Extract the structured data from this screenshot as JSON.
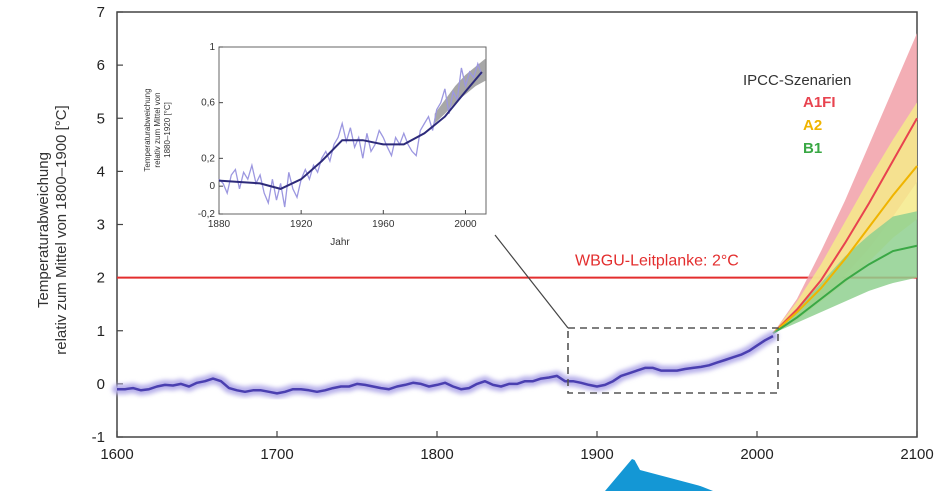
{
  "colors": {
    "history": "#4a3fb0",
    "history_halo": "#b7b0ea",
    "guardrail": "#e32e2e",
    "a1fi": "#e8434f",
    "a1fi_band": "#f1a0a8",
    "a2": "#f0b400",
    "a2_band": "#f5ea8a",
    "b1": "#3aa845",
    "b1_band": "#8fd08f",
    "shape": "#1497d5"
  },
  "chart_data": [
    {
      "type": "line",
      "title": "",
      "ylabel_lines": [
        "Temperaturabweichung",
        "relativ zum Mittel von 1800–1900 [°C]"
      ],
      "xlabel": "",
      "xlim": [
        1600,
        2100
      ],
      "ylim": [
        -1,
        7
      ],
      "xticks": [
        "1600",
        "1700",
        "1800",
        "1900",
        "2000",
        "2100"
      ],
      "yticks": [
        "-1",
        "0",
        "1",
        "2",
        "3",
        "4",
        "5",
        "6",
        "7"
      ],
      "history": {
        "x": [
          1600,
          1605,
          1610,
          1615,
          1620,
          1625,
          1630,
          1635,
          1640,
          1645,
          1650,
          1655,
          1660,
          1665,
          1670,
          1675,
          1680,
          1685,
          1690,
          1695,
          1700,
          1705,
          1710,
          1715,
          1720,
          1725,
          1730,
          1735,
          1740,
          1745,
          1750,
          1755,
          1760,
          1765,
          1770,
          1775,
          1780,
          1785,
          1790,
          1795,
          1800,
          1805,
          1810,
          1815,
          1820,
          1825,
          1830,
          1835,
          1840,
          1845,
          1850,
          1855,
          1860,
          1865,
          1870,
          1875,
          1880,
          1885,
          1890,
          1895,
          1900,
          1905,
          1910,
          1915,
          1920,
          1925,
          1930,
          1935,
          1940,
          1945,
          1950,
          1955,
          1960,
          1965,
          1970,
          1975,
          1980,
          1985,
          1990,
          1995,
          2000,
          2005,
          2010
        ],
        "y": [
          -0.1,
          -0.1,
          -0.08,
          -0.12,
          -0.1,
          -0.05,
          -0.02,
          -0.03,
          0.0,
          -0.05,
          0.02,
          0.05,
          0.1,
          0.05,
          -0.08,
          -0.12,
          -0.15,
          -0.12,
          -0.12,
          -0.15,
          -0.18,
          -0.15,
          -0.1,
          -0.1,
          -0.12,
          -0.15,
          -0.12,
          -0.08,
          -0.05,
          -0.05,
          0.0,
          -0.02,
          -0.05,
          -0.08,
          -0.1,
          -0.05,
          -0.02,
          0.02,
          0.0,
          -0.05,
          -0.02,
          0.02,
          -0.05,
          -0.1,
          -0.08,
          0.0,
          0.05,
          -0.02,
          -0.05,
          0.0,
          0.0,
          0.05,
          0.05,
          0.1,
          0.12,
          0.15,
          0.05,
          0.05,
          0.02,
          -0.02,
          -0.05,
          -0.02,
          0.05,
          0.15,
          0.2,
          0.25,
          0.3,
          0.3,
          0.25,
          0.25,
          0.25,
          0.28,
          0.3,
          0.32,
          0.35,
          0.4,
          0.45,
          0.5,
          0.55,
          0.62,
          0.72,
          0.82,
          0.9
        ]
      },
      "scenarios": {
        "title": "IPCC-Szenarien",
        "x": [
          2010,
          2025,
          2040,
          2055,
          2070,
          2085,
          2100
        ],
        "series": [
          {
            "name": "A1FI",
            "values": [
              0.95,
              1.4,
              1.95,
              2.65,
              3.4,
              4.2,
              5.0
            ],
            "lower": [
              0.95,
              1.25,
              1.6,
              2.05,
              2.55,
              3.15,
              3.8
            ],
            "upper": [
              0.95,
              1.6,
              2.5,
              3.45,
              4.5,
              5.55,
              6.6
            ]
          },
          {
            "name": "A2",
            "values": [
              0.95,
              1.35,
              1.8,
              2.35,
              2.95,
              3.55,
              4.1
            ],
            "lower": [
              0.95,
              1.2,
              1.55,
              1.9,
              2.3,
              2.75,
              3.1
            ],
            "upper": [
              0.95,
              1.55,
              2.25,
              3.05,
              3.85,
              4.6,
              5.3
            ]
          },
          {
            "name": "B1",
            "values": [
              0.95,
              1.25,
              1.6,
              1.95,
              2.25,
              2.5,
              2.6
            ],
            "lower": [
              0.95,
              1.15,
              1.35,
              1.55,
              1.75,
              1.9,
              2.0
            ],
            "upper": [
              0.95,
              1.4,
              1.9,
              2.4,
              2.8,
              3.15,
              3.25
            ]
          }
        ]
      },
      "guardrail": {
        "label": "WBGU-Leitplanke: 2°C",
        "y": 2
      }
    },
    {
      "type": "line",
      "title": "",
      "ylabel_lines": [
        "Temperaturabweichung",
        "relativ zum Mittel von",
        "1880–1920 [°C]"
      ],
      "xlabel": "Jahr",
      "xlim": [
        1880,
        2010
      ],
      "ylim": [
        -0.2,
        1
      ],
      "xticks": [
        "1880",
        "1920",
        "1960",
        "2000"
      ],
      "yticks": [
        "-0,2",
        "0",
        "0,2",
        "0,6",
        "1"
      ],
      "ytick_values": [
        -0.2,
        0,
        0.2,
        0.6,
        1
      ],
      "annual": {
        "x": [
          1880,
          1882,
          1884,
          1886,
          1888,
          1890,
          1892,
          1894,
          1896,
          1898,
          1900,
          1902,
          1904,
          1906,
          1908,
          1910,
          1912,
          1914,
          1916,
          1918,
          1920,
          1922,
          1924,
          1926,
          1928,
          1930,
          1932,
          1934,
          1936,
          1938,
          1940,
          1942,
          1944,
          1946,
          1948,
          1950,
          1952,
          1954,
          1956,
          1958,
          1960,
          1962,
          1964,
          1966,
          1968,
          1970,
          1972,
          1974,
          1976,
          1978,
          1980,
          1982,
          1984,
          1986,
          1988,
          1990,
          1992,
          1994,
          1996,
          1998,
          2000,
          2002,
          2004,
          2006,
          2008
        ],
        "y": [
          0.05,
          0.02,
          -0.05,
          0.08,
          0.12,
          -0.02,
          0.1,
          0.05,
          0.15,
          0.02,
          0.08,
          -0.05,
          -0.12,
          0.05,
          -0.1,
          0.02,
          -0.15,
          0.1,
          -0.02,
          -0.08,
          0.05,
          0.12,
          0.05,
          0.15,
          0.1,
          0.2,
          0.25,
          0.18,
          0.3,
          0.35,
          0.45,
          0.32,
          0.42,
          0.28,
          0.35,
          0.2,
          0.38,
          0.25,
          0.3,
          0.4,
          0.35,
          0.28,
          0.22,
          0.35,
          0.3,
          0.38,
          0.3,
          0.25,
          0.22,
          0.4,
          0.45,
          0.5,
          0.4,
          0.55,
          0.6,
          0.7,
          0.52,
          0.68,
          0.62,
          0.85,
          0.72,
          0.82,
          0.78,
          0.88,
          0.8
        ]
      },
      "smoothed": {
        "x": [
          1880,
          1890,
          1900,
          1910,
          1920,
          1930,
          1940,
          1950,
          1960,
          1970,
          1980,
          1990,
          2000,
          2008
        ],
        "y": [
          0.04,
          0.03,
          0.02,
          -0.02,
          0.05,
          0.18,
          0.33,
          0.33,
          0.3,
          0.3,
          0.38,
          0.5,
          0.68,
          0.82
        ]
      },
      "band": {
        "x": [
          1985,
          1990,
          1995,
          2000,
          2005,
          2010
        ],
        "lower": [
          0.45,
          0.52,
          0.6,
          0.66,
          0.72,
          0.76
        ],
        "upper": [
          0.52,
          0.62,
          0.72,
          0.8,
          0.86,
          0.92
        ]
      }
    }
  ]
}
